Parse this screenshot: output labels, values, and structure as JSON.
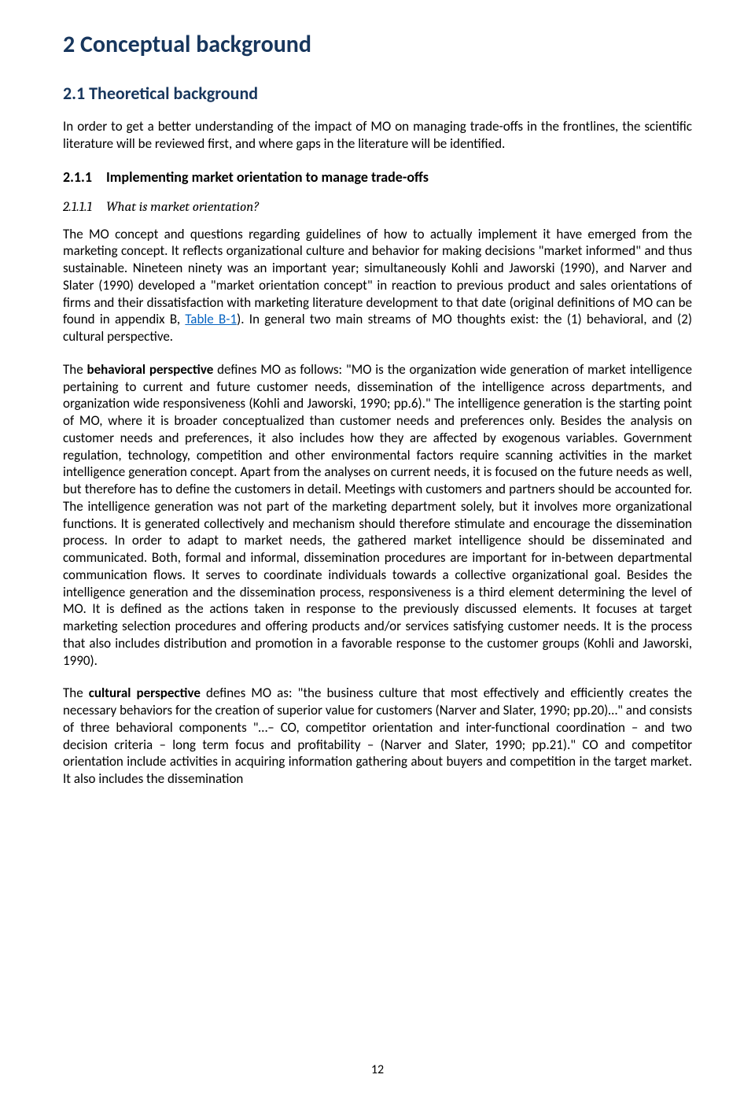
{
  "page_number": "12",
  "headings": {
    "h1": "2   Conceptual background",
    "h2": "2.1   Theoretical background",
    "h3_num": "2.1.1",
    "h3_text": "Implementing market orientation to manage trade-offs",
    "h4_num": "2.1.1.1",
    "h4_text": "What is market orientation?"
  },
  "paragraphs": {
    "p1": "In order to get a better understanding of the impact of MO on managing trade-offs in the frontlines, the scientific literature will be reviewed first, and where gaps in the literature will be identified.",
    "p2_a": "The MO concept and questions regarding guidelines of how to actually implement it have emerged from the marketing concept. It reflects organizational culture and behavior for making decisions \"market informed\" and thus sustainable. Nineteen ninety was an important year; simultaneously Kohli and Jaworski (1990), and Narver and Slater (1990) developed a \"market orientation concept\" in reaction to previous product and sales orientations of firms and their dissatisfaction with marketing literature development to that date (original definitions of MO can be found in appendix B, ",
    "p2_link": "Table B-1",
    "p2_b": "). In general two main streams of MO thoughts exist: the (1) behavioral, and (2) cultural perspective.",
    "p3_a": "The ",
    "p3_bold": "behavioral perspective",
    "p3_b": " defines MO as follows: \"MO is the organization wide generation of market intelligence pertaining to current and future customer needs, dissemination of the intelligence across departments, and organization wide responsiveness (Kohli and Jaworski, 1990; pp.6).\" The intelligence generation is the starting point of MO, where it is broader conceptualized than customer needs and preferences only. Besides the analysis on customer needs and preferences, it also includes how they are affected by exogenous variables. Government regulation, technology, competition and other environmental factors require scanning activities in the market intelligence generation concept. Apart from the analyses on current needs, it is focused on the future needs as well, but therefore has to define the customers in detail. Meetings with customers and partners should be accounted for. The intelligence generation was not part of the marketing department solely, but it involves more organizational functions. It is generated collectively and mechanism should therefore stimulate and encourage the dissemination process.  In order to adapt to market needs, the gathered market intelligence should be disseminated and communicated. Both, formal and informal, dissemination procedures are important for in-between departmental communication flows. It serves to coordinate individuals towards a collective organizational goal. Besides the intelligence generation and the dissemination process, responsiveness is a third element determining the level of MO. It is defined as the actions taken in response to the previously discussed elements. It focuses at target marketing selection procedures and offering products and/or services satisfying customer needs. It is the process that also includes distribution and promotion in a favorable response to the customer groups (Kohli and Jaworski, 1990).",
    "p4_a": "The ",
    "p4_bold": "cultural perspective",
    "p4_b": " defines MO as: \"the business culture that most effectively and efficiently creates the necessary behaviors for the creation of superior value for customers (Narver and Slater, 1990; pp.20)…\" and consists of three behavioral components \"…– CO, competitor orientation and inter-functional coordination – and two decision criteria – long term focus and profitability – (Narver and Slater, 1990; pp.21).\" CO and competitor orientation include activities in acquiring information gathering about buyers and competition in the target market. It also includes the dissemination"
  },
  "colors": {
    "heading": "#17365d",
    "link": "#0563c1",
    "text": "#000000",
    "background": "#ffffff"
  }
}
